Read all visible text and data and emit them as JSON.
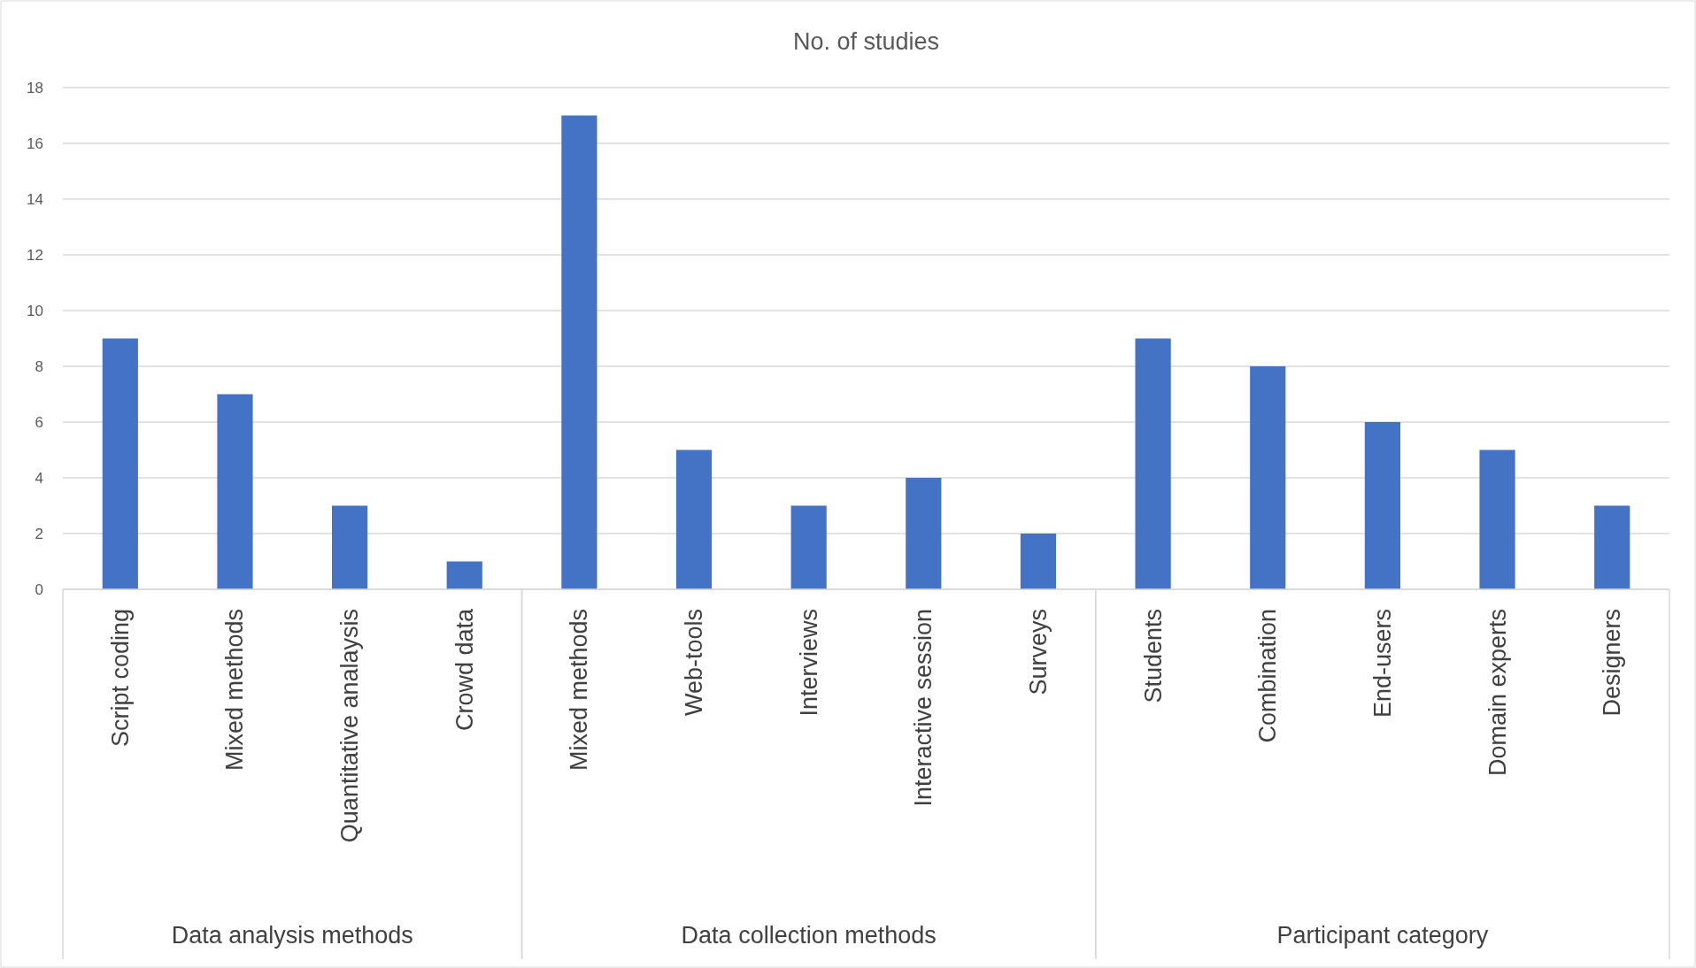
{
  "chart_data": {
    "type": "bar",
    "title": "No. of studies",
    "categories": [
      "Script coding",
      "Mixed methods",
      "Quantitative analaysis",
      "Crowd data",
      "Mixed methods",
      "Web-tools",
      "Interviews",
      "Interactive session",
      "Surveys",
      "Students",
      "Combination",
      "End-users",
      "Domain experts",
      "Designers"
    ],
    "values": [
      9,
      7,
      3,
      1,
      17,
      5,
      3,
      4,
      2,
      9,
      8,
      6,
      5,
      3
    ],
    "color": "#4472c4",
    "ylim": [
      0,
      18
    ],
    "yticks": [
      0,
      2,
      4,
      6,
      8,
      10,
      12,
      14,
      16,
      18
    ],
    "grid": "y",
    "annotations": [
      "Data analysis methods",
      "Data collection methods",
      "Participant category"
    ]
  }
}
